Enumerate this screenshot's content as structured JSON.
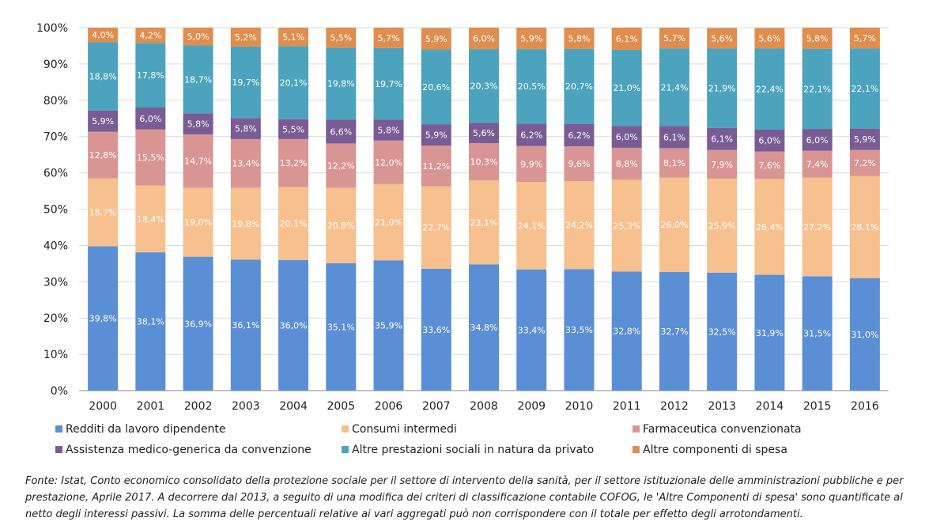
{
  "chart_data": {
    "type": "bar",
    "stacked": true,
    "ylim": [
      0,
      100
    ],
    "yticks": [
      "0%",
      "10%",
      "20%",
      "30%",
      "40%",
      "50%",
      "60%",
      "70%",
      "80%",
      "90%",
      "100%"
    ],
    "grid": true,
    "legend_position": "bottom",
    "categories": [
      "2000",
      "2001",
      "2002",
      "2003",
      "2004",
      "2005",
      "2006",
      "2007",
      "2008",
      "2009",
      "2010",
      "2011",
      "2012",
      "2013",
      "2014",
      "2015",
      "2016"
    ],
    "series": [
      {
        "name": "Redditi da lavoro dipendente",
        "color": "#5B8FD5",
        "values": [
          39.8,
          38.1,
          36.9,
          36.1,
          36.0,
          35.1,
          35.9,
          33.6,
          34.8,
          33.4,
          33.5,
          32.8,
          32.7,
          32.5,
          31.9,
          31.5,
          31.0
        ],
        "labels": [
          "39,8%",
          "38,1%",
          "36,9%",
          "36,1%",
          "36,0%",
          "35,1%",
          "35,9%",
          "33,6%",
          "34,8%",
          "33,4%",
          "33,5%",
          "32,8%",
          "32,7%",
          "32,5%",
          "31,9%",
          "31,5%",
          "31,0%"
        ]
      },
      {
        "name": "Consumi intermedi",
        "color": "#F6C08F",
        "values": [
          18.7,
          18.4,
          19.0,
          19.8,
          20.1,
          20.8,
          21.0,
          22.7,
          23.1,
          24.1,
          24.2,
          25.3,
          26.0,
          25.9,
          26.4,
          27.2,
          28.1
        ],
        "labels": [
          "18,7%",
          "18,4%",
          "19,0%",
          "19,8%",
          "20,1%",
          "20,8%",
          "21,0%",
          "22,7%",
          "23,1%",
          "24,1%",
          "24,2%",
          "25,3%",
          "26,0%",
          "25,9%",
          "26,4%",
          "27,2%",
          "28,1%"
        ]
      },
      {
        "name": "Farmaceutica convenzionata",
        "color": "#D99594",
        "values": [
          12.8,
          15.5,
          14.7,
          13.4,
          13.2,
          12.2,
          12.0,
          11.2,
          10.3,
          9.9,
          9.6,
          8.8,
          8.1,
          7.9,
          7.6,
          7.4,
          7.2
        ],
        "labels": [
          "12,8%",
          "15,5%",
          "14,7%",
          "13,4%",
          "13,2%",
          "12,2%",
          "12,0%",
          "11,2%",
          "10,3%",
          "9,9%",
          "9,6%",
          "8,8%",
          "8,1%",
          "7,9%",
          "7,6%",
          "7,4%",
          "7,2%"
        ]
      },
      {
        "name": "Assistenza medico-generica da convenzione",
        "color": "#7A5C95",
        "values": [
          5.9,
          6.0,
          5.8,
          5.8,
          5.5,
          6.6,
          5.8,
          5.9,
          5.6,
          6.2,
          6.2,
          6.0,
          6.1,
          6.1,
          6.0,
          6.0,
          5.9
        ],
        "labels": [
          "5,9%",
          "6,0%",
          "5,8%",
          "5,8%",
          "5,5%",
          "6,6%",
          "5,8%",
          "5,9%",
          "5,6%",
          "6,2%",
          "6,2%",
          "6,0%",
          "6,1%",
          "6,1%",
          "6,0%",
          "6,0%",
          "5,9%"
        ]
      },
      {
        "name": "Altre prestazioni sociali in natura da privato",
        "color": "#4BA3BE",
        "values": [
          18.8,
          17.8,
          18.7,
          19.7,
          20.1,
          19.8,
          19.7,
          20.6,
          20.3,
          20.5,
          20.7,
          21.0,
          21.4,
          21.9,
          22.4,
          22.1,
          22.1
        ],
        "labels": [
          "18,8%",
          "17,8%",
          "18,7%",
          "19,7%",
          "20,1%",
          "19,8%",
          "19,7%",
          "20,6%",
          "20,3%",
          "20,5%",
          "20,7%",
          "21,0%",
          "21,4%",
          "21,9%",
          "22,4%",
          "22,1%",
          "22,1%"
        ]
      },
      {
        "name": "Altre componenti di spesa",
        "color": "#E08E4E",
        "values": [
          4.0,
          4.2,
          5.0,
          5.2,
          5.1,
          5.5,
          5.7,
          5.9,
          6.0,
          5.9,
          5.8,
          6.1,
          5.7,
          5.6,
          5.6,
          5.8,
          5.7
        ],
        "labels": [
          "4,0%",
          "4,2%",
          "5,0%",
          "5,2%",
          "5,1%",
          "5,5%",
          "5,7%",
          "5,9%",
          "6,0%",
          "5,9%",
          "5,8%",
          "6,1%",
          "5,7%",
          "5,6%",
          "5,6%",
          "5,8%",
          "5,7%"
        ]
      }
    ]
  },
  "footnote": "Fonte:  Istat, Conto economico consolidato della protezione sociale per il settore di intervento della sanità, per il settore istituzionale delle amministrazioni pubbliche e per prestazione, Aprile 2017. A decorrere dal 2013, a seguito di una modifica dei criteri di classificazione contabile COFOG, le 'Altre Componenti di spesa' sono quantificate al netto degli interessi passivi. La somma delle percentuali relative ai vari aggregati può non corrispondere con il totale per effetto degli arrotondamenti."
}
